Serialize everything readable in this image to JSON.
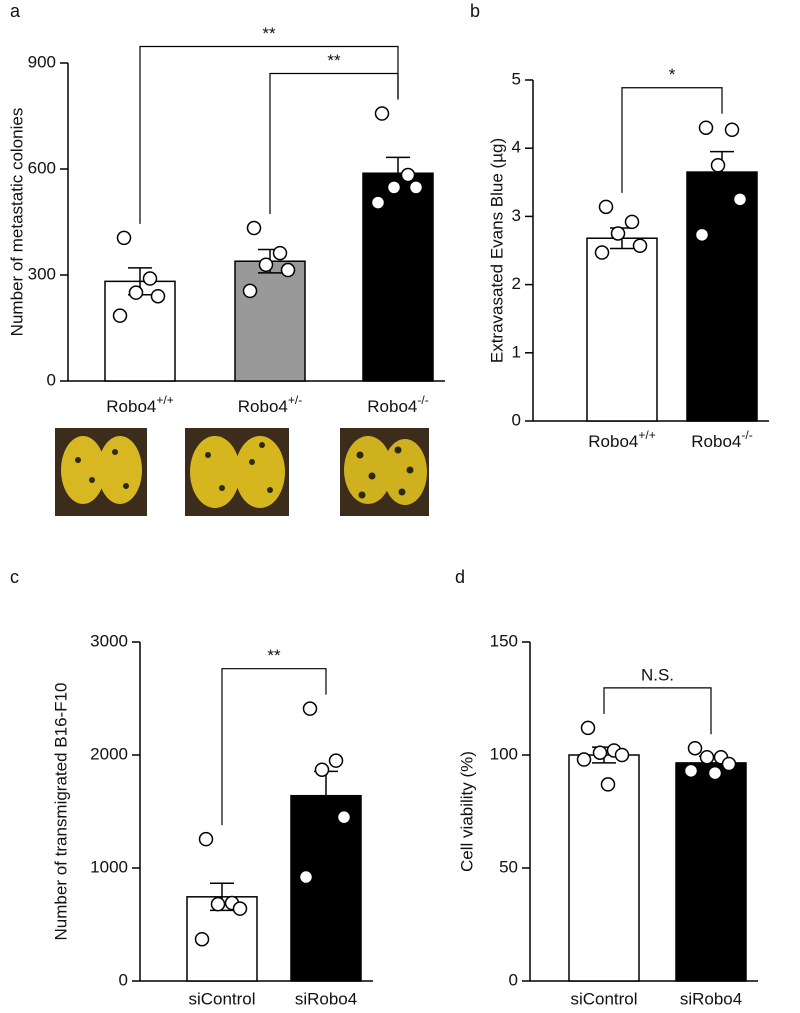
{
  "chart_data": [
    {
      "type": "bar",
      "label": "a",
      "y_label": "Number of metastatic colonies",
      "categories": [
        "Robo4+/+",
        "Robo4+/-",
        "Robo4-/-"
      ],
      "values": [
        282,
        339,
        588
      ],
      "errors": [
        38,
        33,
        45
      ],
      "points": [
        [
          405,
          290,
          250,
          240,
          185
        ],
        [
          433,
          362,
          329,
          314,
          255
        ],
        [
          757,
          583,
          548,
          548,
          505
        ]
      ],
      "colors": [
        "#ffffff",
        "#999999",
        "#000000"
      ],
      "ylim": [
        0,
        900
      ],
      "yticks": [
        0,
        300,
        600,
        900
      ],
      "significance": [
        {
          "pair": [
            0,
            2
          ],
          "label": "**"
        },
        {
          "pair": [
            1,
            2
          ],
          "label": "**"
        }
      ]
    },
    {
      "type": "bar",
      "label": "b",
      "y_label": "Extravasated Evans Blue (µg)",
      "categories": [
        "Robo4+/+",
        "Robo4-/-"
      ],
      "values": [
        2.68,
        3.65
      ],
      "errors": [
        0.15,
        0.3
      ],
      "points": [
        [
          3.14,
          2.92,
          2.75,
          2.57,
          2.47
        ],
        [
          4.3,
          4.27,
          3.75,
          3.25,
          2.73
        ]
      ],
      "colors": [
        "#ffffff",
        "#000000"
      ],
      "ylim": [
        0,
        5
      ],
      "yticks": [
        0,
        1,
        2,
        3,
        4,
        5
      ],
      "significance": [
        {
          "pair": [
            0,
            1
          ],
          "label": "*"
        }
      ]
    },
    {
      "type": "bar",
      "label": "c",
      "y_label": "Number of transmigrated B16-F10",
      "categories": [
        "siControl",
        "siRobo4"
      ],
      "values": [
        745,
        1640
      ],
      "errors": [
        120,
        215
      ],
      "points": [
        [
          1255,
          690,
          680,
          640,
          370
        ],
        [
          2410,
          1950,
          1870,
          1450,
          920
        ]
      ],
      "colors": [
        "#ffffff",
        "#000000"
      ],
      "ylim": [
        0,
        3000
      ],
      "yticks": [
        0,
        1000,
        2000,
        3000
      ],
      "significance": [
        {
          "pair": [
            0,
            1
          ],
          "label": "**"
        }
      ]
    },
    {
      "type": "bar",
      "label": "d",
      "y_label": "Cell viability (%)",
      "categories": [
        "siControl",
        "siRobo4"
      ],
      "values": [
        100,
        96.5
      ],
      "errors": [
        3.5,
        3
      ],
      "points": [
        [
          112,
          102,
          101,
          100,
          98,
          87
        ],
        [
          103,
          99,
          99,
          96,
          93,
          92
        ]
      ],
      "colors": [
        "#ffffff",
        "#000000"
      ],
      "ylim": [
        0,
        150
      ],
      "yticks": [
        0,
        50,
        100,
        150
      ],
      "significance": [
        {
          "pair": [
            0,
            1
          ],
          "label": "N.S."
        }
      ]
    }
  ]
}
